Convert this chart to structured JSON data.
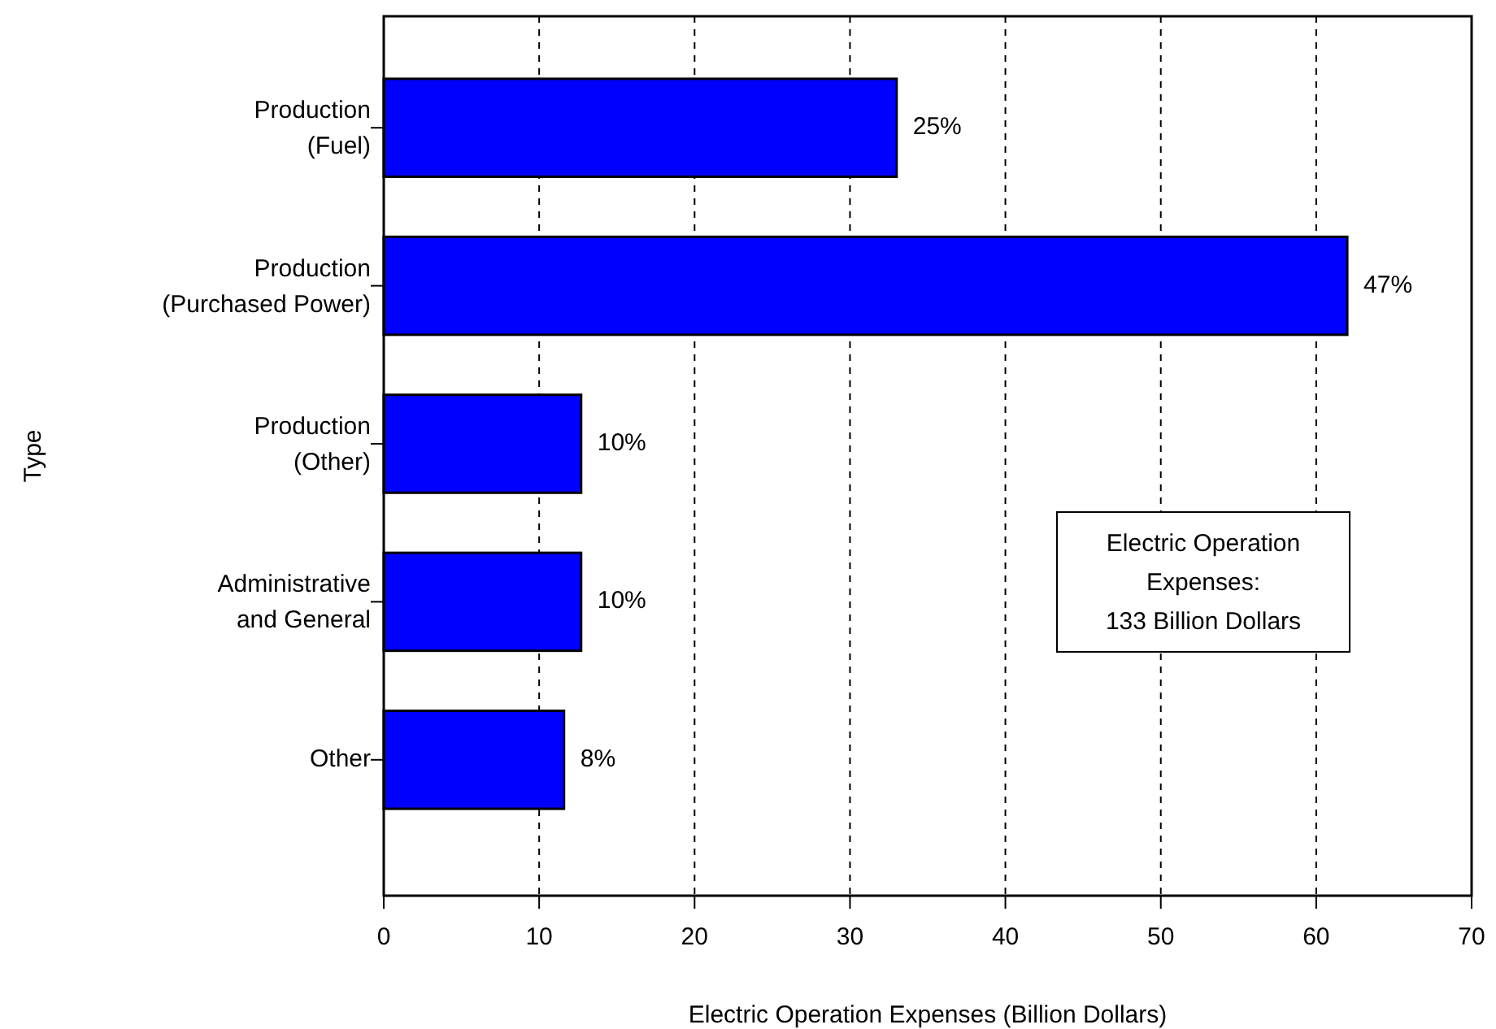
{
  "chart_data": {
    "type": "bar",
    "orientation": "horizontal",
    "xlabel": "Electric Operation Expenses (Billion Dollars)",
    "ylabel": "Type",
    "categories": [
      "Production\n(Fuel)",
      "Production\n(Purchased Power)",
      "Production\n(Other)",
      "Administrative\nand General",
      "Other"
    ],
    "values": [
      33,
      62,
      12.7,
      12.7,
      11.6
    ],
    "color": "#0000ff",
    "xlim": [
      0,
      70
    ],
    "xticks": [
      0,
      10,
      20,
      30,
      40,
      50,
      60,
      70
    ],
    "grid": "x",
    "annotations": [
      "Electric Operation\nExpenses:\n133 Billion Dollars",
      {
        "text": "25%",
        "x": 33,
        "y": "Production\n(Fuel)"
      },
      {
        "text": "47%",
        "x": 62,
        "y": "Production\n(Purchased Power)"
      },
      {
        "text": "10%",
        "x": 12.7,
        "y": "Production\n(Other)"
      },
      {
        "text": "10%",
        "x": 12.7,
        "y": "Administrative\nand General"
      },
      {
        "text": "8%",
        "x": 11.6,
        "y": "Other"
      }
    ]
  }
}
